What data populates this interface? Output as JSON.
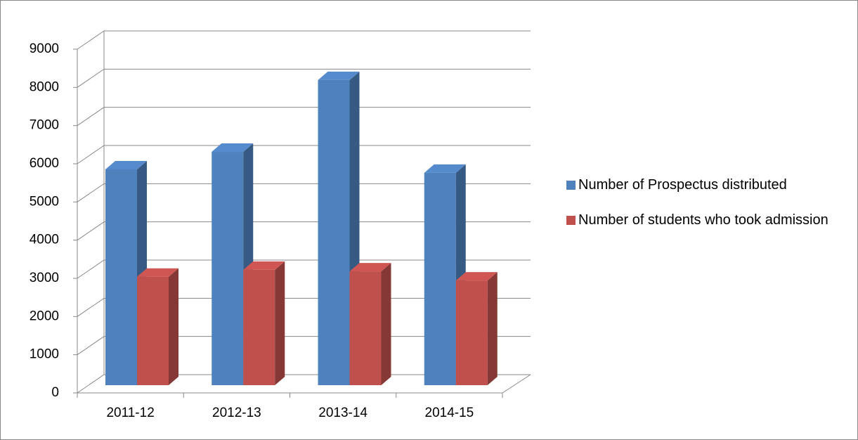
{
  "chart_data": {
    "type": "bar3d",
    "categories": [
      "2011-12",
      "2012-13",
      "2013-14",
      "2014-15"
    ],
    "series": [
      {
        "name": "Number of Prospectus distributed",
        "color": "#4f81bd",
        "values": [
          5650,
          6110,
          7990,
          5560
        ]
      },
      {
        "name": "Number of students who took admission",
        "color": "#c0504d",
        "values": [
          2840,
          3020,
          2980,
          2740
        ]
      }
    ],
    "ylim": [
      0,
      9000
    ],
    "yticks": [
      0,
      1000,
      2000,
      3000,
      4000,
      5000,
      6000,
      7000,
      8000,
      9000
    ],
    "grid": true,
    "legend": "right"
  }
}
